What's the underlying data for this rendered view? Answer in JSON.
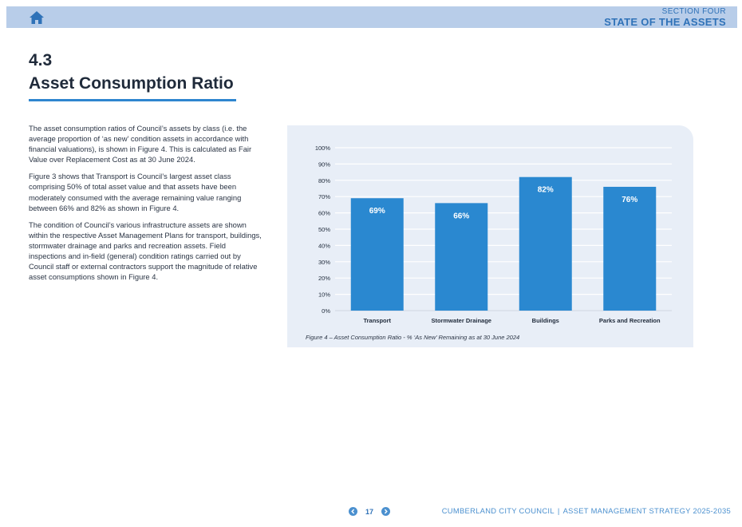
{
  "header": {
    "section_label": "SECTION FOUR",
    "section_title": "STATE OF THE ASSETS",
    "home_icon": "home-icon"
  },
  "heading": {
    "number": "4.3",
    "title": "Asset Consumption Ratio"
  },
  "body": {
    "paragraphs": [
      "The asset consumption ratios of Council’s assets by class (i.e. the average proportion of ‘as new’ condition assets in accordance with financial valuations), is shown in Figure 4. This is calculated as Fair Value over Replacement Cost as at 30 June 2024.",
      "Figure 3 shows that Transport is Council’s largest asset class comprising 50% of total asset value and that assets have been moderately consumed with the average remaining value ranging between 66% and 82% as shown in Figure 4.",
      "The condition of Council’s various infrastructure assets are shown within the respective Asset Management Plans for transport, buildings, stormwater drainage and parks and recreation assets. Field inspections and in-field (general) condition ratings carried out by Council staff or external contractors support the magnitude of relative asset consumptions shown in Figure 4."
    ]
  },
  "chart_data": {
    "type": "bar",
    "categories": [
      "Transport",
      "Stormwater Drainage",
      "Buildings",
      "Parks and Recreation"
    ],
    "values": [
      69,
      66,
      82,
      76
    ],
    "data_labels": [
      "69%",
      "66%",
      "82%",
      "76%"
    ],
    "yticks": [
      "0%",
      "10%",
      "20%",
      "30%",
      "40%",
      "50%",
      "60%",
      "70%",
      "80%",
      "90%",
      "100%"
    ],
    "ylim": [
      0,
      100
    ],
    "grid": true,
    "bar_color": "#2a88d0",
    "caption": "Figure 4 – Asset Consumption Ratio - % ‘As New’ Remaining as at 30 June 2024"
  },
  "footer": {
    "page_number": "17",
    "org": "CUMBERLAND CITY COUNCIL",
    "separator": "|",
    "doc": "ASSET MANAGEMENT STRATEGY 2025-2035",
    "prev_icon": "chevron-left-icon",
    "next_icon": "chevron-right-icon"
  },
  "colors": {
    "accent": "#2e86cf",
    "header_bar": "#b8cde9",
    "panel_bg": "#e8eef7"
  }
}
